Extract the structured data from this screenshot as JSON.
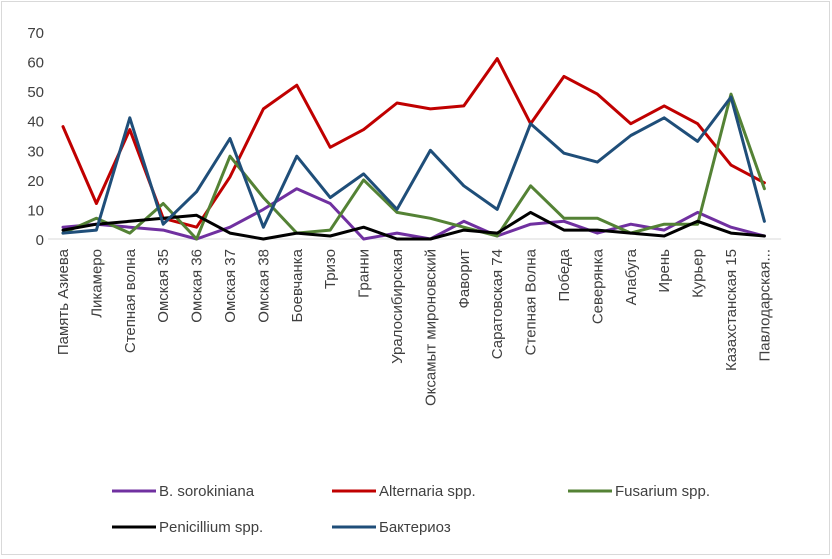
{
  "chart_data": {
    "type": "line",
    "categories": [
      "Память Азиева",
      "Ликамеро",
      "Степная волна",
      "Омская 35",
      "Омская 36",
      "Омская 37",
      "Омская 38",
      "Боевчанка",
      "Тризо",
      "Гранни",
      "Уралосибирская",
      "Оксамыт мироновский",
      "Фаворит",
      "Саратовская 74",
      "Степная Волна",
      "Победа",
      "Северянка",
      "Алабуга",
      "Ирень",
      "Курьер",
      "Казахстанская 15",
      "Павлодарская..."
    ],
    "ylim": [
      0,
      70
    ],
    "yticks": [
      0,
      10,
      20,
      30,
      40,
      50,
      60,
      70
    ],
    "grid": false,
    "legend_position": "bottom",
    "series": [
      {
        "name": "B. sorokiniana",
        "color": "#7030a0",
        "values": [
          4,
          5,
          4,
          3,
          0,
          4,
          10,
          17,
          12,
          0,
          2,
          0,
          6,
          1,
          5,
          6,
          2,
          5,
          3,
          9,
          4,
          1
        ]
      },
      {
        "name": "Alternaria spp.",
        "color": "#c00000",
        "values": [
          38,
          12,
          37,
          7,
          4,
          21,
          44,
          52,
          31,
          37,
          46,
          44,
          45,
          61,
          39,
          55,
          49,
          39,
          45,
          39,
          25,
          19
        ]
      },
      {
        "name": "Fusarium spp.",
        "color": "#548235",
        "values": [
          2,
          7,
          2,
          12,
          0,
          28,
          14,
          2,
          3,
          20,
          9,
          7,
          4,
          1,
          18,
          7,
          7,
          2,
          5,
          5,
          49,
          17
        ]
      },
      {
        "name": "Penicillium spp.",
        "color": "#000000",
        "values": [
          3,
          5,
          6,
          7,
          8,
          2,
          0,
          2,
          1,
          4,
          0,
          0,
          3,
          2,
          9,
          3,
          3,
          2,
          1,
          6,
          2,
          1
        ]
      },
      {
        "name": "Бактериоз",
        "color": "#1f4e79",
        "values": [
          2,
          3,
          41,
          5,
          16,
          34,
          4,
          28,
          14,
          22,
          10,
          30,
          18,
          10,
          39,
          29,
          26,
          35,
          41,
          33,
          48,
          6
        ]
      }
    ]
  }
}
